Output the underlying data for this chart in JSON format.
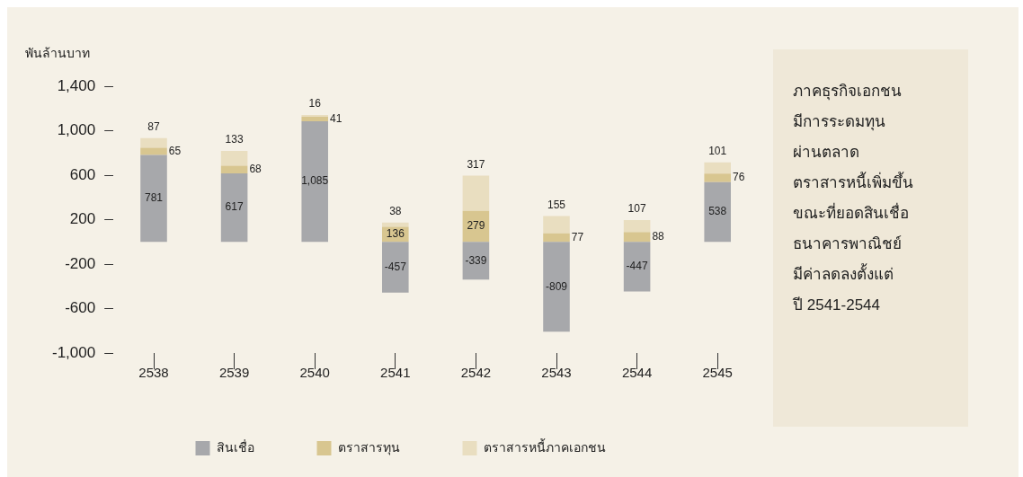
{
  "chart_data": {
    "type": "bar",
    "stacked": true,
    "ylabel": "พันล้านบาท",
    "categories": [
      "2538",
      "2539",
      "2540",
      "2541",
      "2542",
      "2543",
      "2544",
      "2545"
    ],
    "series": [
      {
        "name": "สินเชื่อ",
        "color": "#a7a8ab",
        "values": [
          781,
          617,
          1085,
          -457,
          -339,
          -809,
          -447,
          538
        ],
        "value_labels": [
          "781",
          "617",
          "1,085",
          "-457",
          "-339",
          "-809",
          "-447",
          "538"
        ]
      },
      {
        "name": "ตราสารทุน",
        "color": "#d8c690",
        "values": [
          65,
          68,
          41,
          136,
          279,
          77,
          88,
          76
        ]
      },
      {
        "name": "ตราสารหนี้ภาคเอกชน",
        "color": "#e9dec0",
        "values": [
          87,
          133,
          16,
          38,
          317,
          155,
          107,
          101
        ]
      }
    ],
    "ylim": [
      -1000,
      1400
    ],
    "yticks": [
      {
        "value": -1000,
        "label": "-1,000"
      },
      -600,
      -200,
      200,
      600,
      {
        "value": 1000,
        "label": "1,000"
      },
      {
        "value": 1400,
        "label": "1,400"
      }
    ],
    "grid": false,
    "legend": "bottom",
    "data_labels": true,
    "annotations": [
      "ภาคธุรกิจเอกชน\nมีการระดมทุน\nผ่านตลาด\nตราสารหนี้เพิ่มขึ้น\nขณะที่ยอดสินเชื่อ\nธนาคารพาณิชย์\nมีค่าลดลงตั้งแต่\nปี 2541-2544"
    ]
  }
}
